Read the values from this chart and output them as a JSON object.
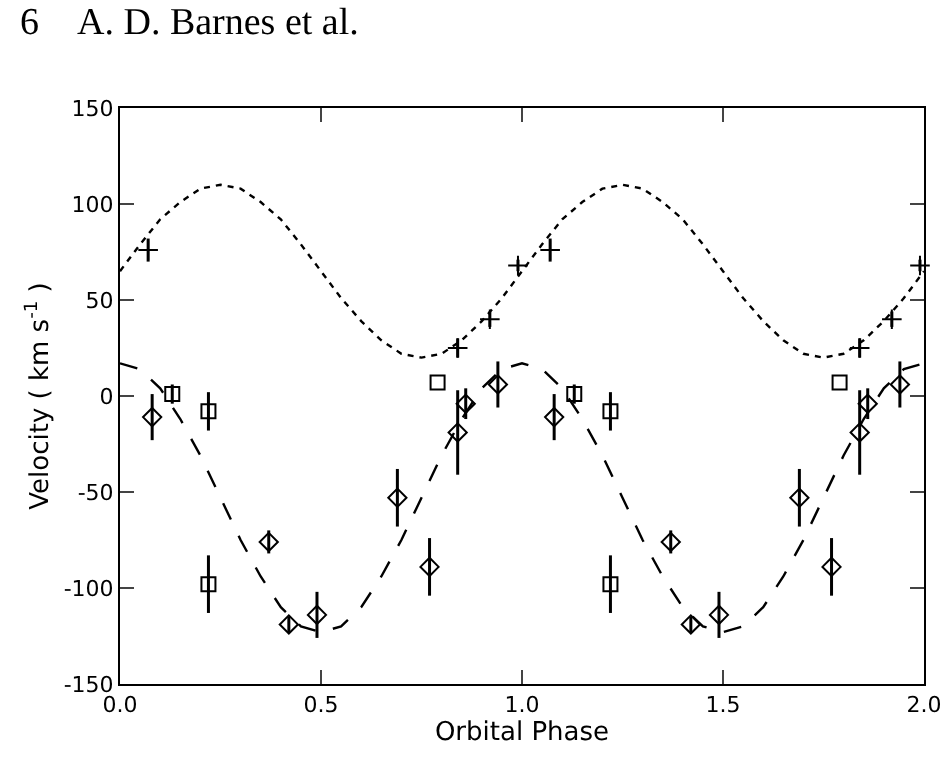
{
  "chart_data": {
    "type": "scatter",
    "xlabel": "Orbital Phase",
    "ylabel": "Velocity ( km s$^{-1}$ )",
    "annotations": [
      "6    A. D. Barnes et al."
    ],
    "xlim": [
      0,
      2
    ],
    "xticks": [
      {
        "value": 0,
        "label": "0.0"
      },
      {
        "value": 0.5,
        "label": "0.5"
      },
      {
        "value": 1,
        "label": "1.0"
      },
      {
        "value": 1.5,
        "label": "1.5"
      },
      {
        "value": 2,
        "label": "2.0"
      }
    ],
    "ylim": [
      -150,
      150
    ],
    "yticks": [
      -150,
      -100,
      -50,
      0,
      50,
      100,
      150
    ],
    "grid": false,
    "series": [
      {
        "type": "line",
        "line_style": "dotted",
        "marker": "none",
        "color": "#000000",
        "x": [
          0,
          0.05,
          0.1,
          0.15,
          0.2,
          0.25,
          0.3,
          0.35,
          0.4,
          0.45,
          0.5,
          0.55,
          0.6,
          0.65,
          0.7,
          0.75,
          0.8,
          0.85,
          0.9,
          0.95,
          1,
          1.05,
          1.1,
          1.15,
          1.2,
          1.25,
          1.3,
          1.35,
          1.4,
          1.45,
          1.5,
          1.55,
          1.6,
          1.65,
          1.7,
          1.75,
          1.8,
          1.85,
          1.9,
          1.95,
          2
        ],
        "values": [
          65,
          79,
          92,
          101,
          108,
          110,
          108,
          101,
          92,
          79,
          65,
          51,
          39,
          29,
          22,
          20,
          22,
          29,
          39,
          51,
          65,
          79,
          92,
          101,
          108,
          110,
          108,
          101,
          92,
          79,
          65,
          51,
          39,
          29,
          22,
          20,
          22,
          29,
          39,
          51,
          65
        ]
      },
      {
        "type": "line",
        "line_style": "dashed",
        "marker": "none",
        "color": "#000000",
        "x": [
          0,
          0.05,
          0.1,
          0.15,
          0.2,
          0.25,
          0.3,
          0.35,
          0.4,
          0.45,
          0.5,
          0.55,
          0.6,
          0.65,
          0.7,
          0.75,
          0.8,
          0.85,
          0.9,
          0.95,
          1,
          1.05,
          1.1,
          1.15,
          1.2,
          1.25,
          1.3,
          1.35,
          1.4,
          1.45,
          1.5,
          1.55,
          1.6,
          1.65,
          1.7,
          1.75,
          1.8,
          1.85,
          1.9,
          1.95,
          2
        ],
        "values": [
          17,
          14,
          4,
          -12,
          -31,
          -53,
          -75,
          -94,
          -110,
          -120,
          -123,
          -120,
          -110,
          -94,
          -75,
          -53,
          -31,
          -12,
          4,
          14,
          17,
          14,
          4,
          -12,
          -31,
          -53,
          -75,
          -94,
          -110,
          -120,
          -123,
          -120,
          -110,
          -94,
          -75,
          -53,
          -31,
          -12,
          4,
          14,
          17
        ]
      },
      {
        "type": "scatter",
        "marker": "cross",
        "color": "#000000",
        "x": [
          0.07,
          0.84,
          0.92,
          0.99,
          1.07,
          1.84,
          1.92,
          1.99
        ],
        "values": [
          76,
          25,
          40,
          68,
          76,
          25,
          40,
          68
        ],
        "errors": [
          6,
          5,
          4,
          3,
          6,
          5,
          4,
          3
        ]
      },
      {
        "type": "scatter",
        "marker": "diamond",
        "color": "#000000",
        "x": [
          0.08,
          0.37,
          0.42,
          0.49,
          0.69,
          0.77,
          0.84,
          0.86,
          0.94,
          1.08,
          1.37,
          1.42,
          1.49,
          1.69,
          1.77,
          1.84,
          1.86,
          1.94
        ],
        "values": [
          -11,
          -76,
          -119,
          -114,
          -53,
          -89,
          -19,
          -4,
          6,
          -11,
          -76,
          -119,
          -114,
          -53,
          -89,
          -19,
          -4,
          6
        ],
        "errors": [
          12,
          6,
          4,
          12,
          15,
          15,
          22,
          8,
          12,
          12,
          6,
          4,
          12,
          15,
          15,
          22,
          8,
          12
        ]
      },
      {
        "type": "scatter",
        "marker": "square",
        "color": "#000000",
        "x": [
          0.13,
          0.22,
          0.22,
          0.79,
          1.13,
          1.22,
          1.22,
          1.79
        ],
        "values": [
          1,
          -8,
          -98,
          7,
          1,
          -8,
          -98,
          7
        ],
        "errors": [
          5,
          10,
          15,
          null,
          5,
          10,
          15,
          null
        ]
      }
    ]
  }
}
